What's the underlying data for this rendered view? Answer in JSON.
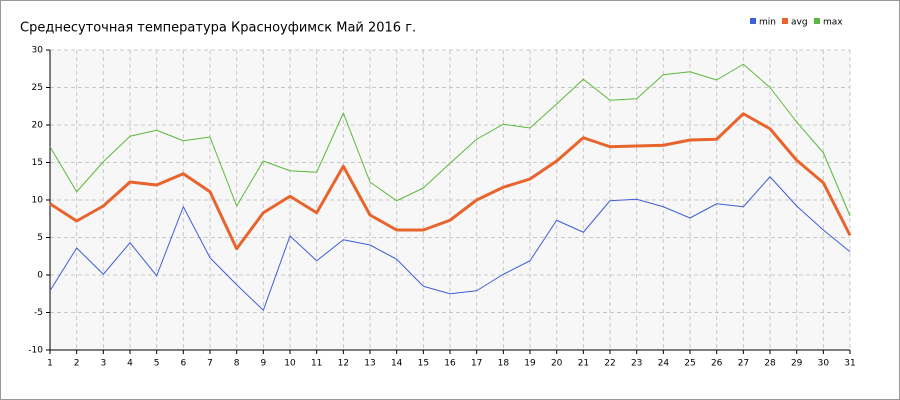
{
  "chart_data": {
    "type": "line",
    "title": "Среднесуточная температура Красноуфимск  Май 2016 г.",
    "x": [
      1,
      2,
      3,
      4,
      5,
      6,
      7,
      8,
      9,
      10,
      11,
      12,
      13,
      14,
      15,
      16,
      17,
      18,
      19,
      20,
      21,
      22,
      23,
      24,
      25,
      26,
      27,
      28,
      29,
      30,
      31
    ],
    "xlim": [
      1,
      31
    ],
    "xticks": [
      1,
      2,
      3,
      4,
      5,
      6,
      7,
      8,
      9,
      10,
      11,
      12,
      13,
      14,
      15,
      16,
      17,
      18,
      19,
      20,
      21,
      22,
      23,
      24,
      25,
      26,
      27,
      28,
      29,
      30,
      31
    ],
    "ylim": [
      -10,
      30
    ],
    "yticks": [
      -10,
      -5,
      0,
      5,
      10,
      15,
      20,
      25,
      30
    ],
    "grid": true,
    "legend": "top-right",
    "series": [
      {
        "name": "min",
        "color": "#3f5fd8",
        "values": [
          -2.1,
          3.6,
          0.1,
          4.3,
          -0.1,
          9.1,
          2.3,
          -1.3,
          -4.7,
          5.2,
          1.9,
          4.7,
          4.0,
          2.1,
          -1.5,
          -2.5,
          -2.1,
          0.1,
          1.9,
          7.3,
          5.7,
          9.9,
          10.1,
          9.1,
          7.6,
          9.5,
          9.1,
          13.1,
          9.2,
          6.0,
          3.1
        ]
      },
      {
        "name": "avg",
        "color": "#e8642c",
        "values": [
          9.5,
          7.2,
          9.2,
          12.4,
          12.0,
          13.5,
          11.1,
          3.5,
          8.3,
          10.5,
          8.3,
          14.5,
          8.0,
          6.0,
          6.0,
          7.3,
          10.0,
          11.7,
          12.8,
          15.2,
          18.3,
          17.1,
          17.2,
          17.3,
          18.0,
          18.1,
          21.5,
          19.5,
          15.3,
          12.3,
          5.3
        ]
      },
      {
        "name": "max",
        "color": "#5cb83c",
        "values": [
          17.1,
          11.1,
          15.1,
          18.5,
          19.3,
          17.9,
          18.4,
          9.2,
          15.2,
          13.9,
          13.7,
          21.6,
          12.4,
          9.9,
          11.6,
          14.9,
          18.1,
          20.1,
          19.6,
          22.8,
          26.1,
          23.3,
          23.5,
          26.7,
          27.1,
          26.0,
          28.1,
          25.0,
          20.4,
          16.3,
          7.9
        ]
      }
    ]
  }
}
